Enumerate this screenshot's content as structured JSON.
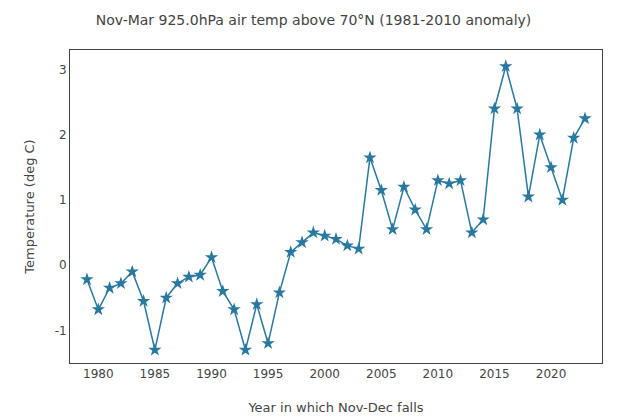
{
  "chart_data": {
    "type": "line",
    "title": "Nov-Mar 925.0hPa air temp above 70°N (1981-2010 anomaly)",
    "xlabel": "Year in which Nov-Dec falls",
    "ylabel": "Temperature (deg C)",
    "x": [
      1979,
      1980,
      1981,
      1982,
      1983,
      1984,
      1985,
      1986,
      1987,
      1988,
      1989,
      1990,
      1991,
      1992,
      1993,
      1994,
      1995,
      1996,
      1997,
      1998,
      1999,
      2000,
      2001,
      2002,
      2003,
      2004,
      2005,
      2006,
      2007,
      2008,
      2009,
      2010,
      2011,
      2012,
      2013,
      2014,
      2015,
      2016,
      2017,
      2018,
      2019,
      2020,
      2021,
      2022,
      2023
    ],
    "values": [
      -0.22,
      -0.68,
      -0.35,
      -0.28,
      -0.1,
      -0.55,
      -1.3,
      -0.5,
      -0.28,
      -0.18,
      -0.15,
      0.12,
      -0.4,
      -0.68,
      -1.3,
      -0.6,
      -1.2,
      -0.42,
      0.2,
      0.35,
      0.5,
      0.45,
      0.4,
      0.3,
      0.25,
      1.65,
      1.15,
      0.55,
      1.2,
      0.85,
      0.55,
      1.3,
      1.25,
      1.3,
      0.5,
      0.7,
      2.4,
      3.05,
      2.4,
      1.05,
      2.0,
      1.5,
      1.0,
      1.95,
      2.25
    ],
    "color": "#2878a0",
    "marker": "star",
    "line_style": "solid",
    "xlim": [
      1977.5,
      2024.5
    ],
    "xticks": [
      1980,
      1985,
      1990,
      1995,
      2000,
      2005,
      2010,
      2015,
      2020
    ],
    "ylim": [
      -1.5,
      3.3
    ],
    "yticks": [
      -1,
      0,
      1,
      2,
      3
    ],
    "grid": false
  }
}
